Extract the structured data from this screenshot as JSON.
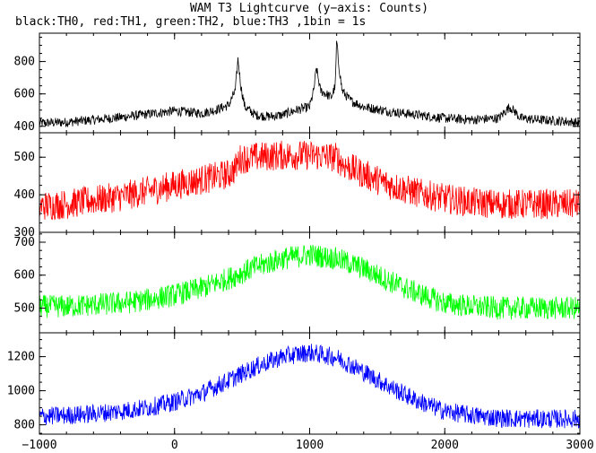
{
  "chart_data": {
    "type": "line",
    "title": "WAM T3 Lightcurve (y−axis: Counts)",
    "subtitle": "black:TH0, red:TH1, green:TH2, blue:TH3 ,1bin = 1s",
    "xlabel": "",
    "ylabel": "",
    "xlim": [
      -1000,
      3000
    ],
    "x_ticks": [
      -1000,
      0,
      1000,
      2000,
      3000
    ],
    "x_tick_labels": [
      "−1000",
      "0",
      "1000",
      "2000",
      "3000"
    ],
    "grid": false,
    "legend": "none",
    "panels": [
      {
        "name": "TH0",
        "color": "#000000",
        "ylim": [
          360,
          975
        ],
        "y_ticks": [
          400,
          600,
          800
        ],
        "y_tick_labels": [
          "400",
          "600",
          "800"
        ],
        "noise_amplitude": 30,
        "x": [
          -1000,
          -800,
          -600,
          -400,
          -200,
          0,
          200,
          300,
          400,
          450,
          470,
          490,
          520,
          600,
          700,
          800,
          900,
          1000,
          1030,
          1050,
          1080,
          1120,
          1160,
          1190,
          1200,
          1210,
          1240,
          1300,
          1400,
          1600,
          1800,
          2000,
          2200,
          2400,
          2480,
          2520,
          2560,
          2700,
          2900,
          3000
        ],
        "values": [
          420,
          425,
          440,
          455,
          475,
          495,
          480,
          500,
          530,
          620,
          820,
          650,
          520,
          470,
          460,
          470,
          500,
          520,
          620,
          760,
          620,
          600,
          580,
          650,
          940,
          820,
          620,
          560,
          520,
          490,
          470,
          450,
          440,
          450,
          520,
          490,
          450,
          440,
          430,
          420
        ]
      },
      {
        "name": "TH1",
        "color": "#ff0000",
        "ylim": [
          300,
          565
        ],
        "y_ticks": [
          300,
          400,
          500
        ],
        "y_tick_labels": [
          "300",
          "400",
          "500"
        ],
        "noise_amplitude": 40,
        "x": [
          -1000,
          -800,
          -600,
          -400,
          -200,
          0,
          200,
          400,
          450,
          480,
          600,
          800,
          1000,
          1200,
          1250,
          1400,
          1600,
          1800,
          2000,
          2200,
          2400,
          2600,
          2800,
          3000
        ],
        "values": [
          370,
          375,
          385,
          395,
          410,
          425,
          440,
          455,
          470,
          495,
          500,
          505,
          505,
          500,
          480,
          455,
          425,
          405,
          390,
          380,
          375,
          375,
          375,
          375
        ]
      },
      {
        "name": "TH2",
        "color": "#00ff00",
        "ylim": [
          425,
          730
        ],
        "y_ticks": [
          500,
          600,
          700
        ],
        "y_tick_labels": [
          "500",
          "600",
          "700"
        ],
        "noise_amplitude": 35,
        "x": [
          -1000,
          -800,
          -600,
          -400,
          -200,
          0,
          200,
          400,
          600,
          800,
          1000,
          1200,
          1400,
          1600,
          1800,
          2000,
          2200,
          2400,
          2600,
          2800,
          3000
        ],
        "values": [
          505,
          505,
          510,
          515,
          525,
          540,
          560,
          590,
          625,
          650,
          662,
          650,
          620,
          580,
          545,
          515,
          505,
          500,
          500,
          500,
          500
        ]
      },
      {
        "name": "TH3",
        "color": "#0000ff",
        "ylim": [
          745,
          1340
        ],
        "y_ticks": [
          800,
          1000,
          1200
        ],
        "y_tick_labels": [
          "800",
          "1000",
          "1200"
        ],
        "noise_amplitude": 55,
        "x": [
          -1000,
          -800,
          -600,
          -400,
          -200,
          0,
          200,
          400,
          600,
          800,
          1000,
          1200,
          1400,
          1600,
          1800,
          2000,
          2200,
          2400,
          2600,
          2800,
          3000
        ],
        "values": [
          850,
          855,
          865,
          880,
          900,
          935,
          985,
          1060,
          1140,
          1200,
          1225,
          1195,
          1110,
          1020,
          940,
          880,
          855,
          840,
          835,
          835,
          835
        ]
      }
    ]
  }
}
